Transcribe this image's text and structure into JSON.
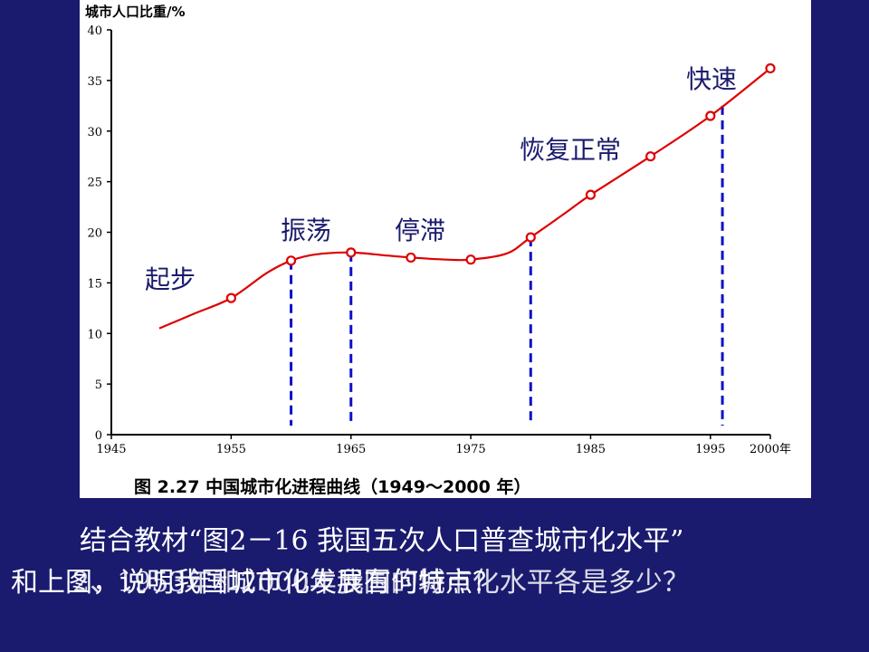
{
  "chart_data": {
    "type": "line",
    "ylabel": "城市人口比重/%",
    "x_ticks": [
      "1945",
      "1955",
      "1965",
      "1975",
      "1985",
      "1995",
      "2000年"
    ],
    "y_ticks": [
      "0",
      "5",
      "10",
      "15",
      "20",
      "25",
      "30",
      "35",
      "40"
    ],
    "xlim": [
      1945,
      2000
    ],
    "ylim": [
      0,
      40
    ],
    "curve": [
      {
        "x": 1949,
        "y": 10.5
      },
      {
        "x": 1952,
        "y": 12.0
      },
      {
        "x": 1955,
        "y": 13.5
      },
      {
        "x": 1958,
        "y": 16.0
      },
      {
        "x": 1960,
        "y": 17.2
      },
      {
        "x": 1962,
        "y": 17.8
      },
      {
        "x": 1965,
        "y": 18.0
      },
      {
        "x": 1968,
        "y": 17.7
      },
      {
        "x": 1970,
        "y": 17.5
      },
      {
        "x": 1973,
        "y": 17.3
      },
      {
        "x": 1975,
        "y": 17.3
      },
      {
        "x": 1978,
        "y": 17.9
      },
      {
        "x": 1980,
        "y": 19.5
      },
      {
        "x": 1983,
        "y": 22.0
      },
      {
        "x": 1985,
        "y": 23.7
      },
      {
        "x": 1990,
        "y": 27.5
      },
      {
        "x": 1995,
        "y": 31.5
      },
      {
        "x": 2000,
        "y": 36.2
      }
    ],
    "markers": [
      {
        "x": 1955,
        "y": 13.5
      },
      {
        "x": 1960,
        "y": 17.2
      },
      {
        "x": 1965,
        "y": 18.0
      },
      {
        "x": 1970,
        "y": 17.5
      },
      {
        "x": 1975,
        "y": 17.3
      },
      {
        "x": 1980,
        "y": 19.5
      },
      {
        "x": 1985,
        "y": 23.7
      },
      {
        "x": 1990,
        "y": 27.5
      },
      {
        "x": 1995,
        "y": 31.5
      },
      {
        "x": 2000,
        "y": 36.2
      }
    ],
    "dividers": [
      {
        "x": 1960,
        "y": 17.2
      },
      {
        "x": 1965,
        "y": 18.0
      },
      {
        "x": 1980,
        "y": 19.5
      },
      {
        "x": 1996,
        "y": 32.5
      }
    ],
    "stage_labels": [
      "起步",
      "振荡",
      "停滞",
      "恢复正常",
      "快速"
    ],
    "title": "图 2.27   中国城市化进程曲线（1949～2000 年）",
    "colors": {
      "line": "#dd0000",
      "marker": "#dd0000",
      "divider": "#1010c8",
      "axis": "#000000"
    }
  },
  "caption": {
    "line1": "结合教材“图2－16  我国五次人口普查城市化水平”",
    "line2": "和上图，说明我国城市化发展有何特点？",
    "overlap": "2、1953年和2000年我国的城市化水平各是多少？"
  }
}
